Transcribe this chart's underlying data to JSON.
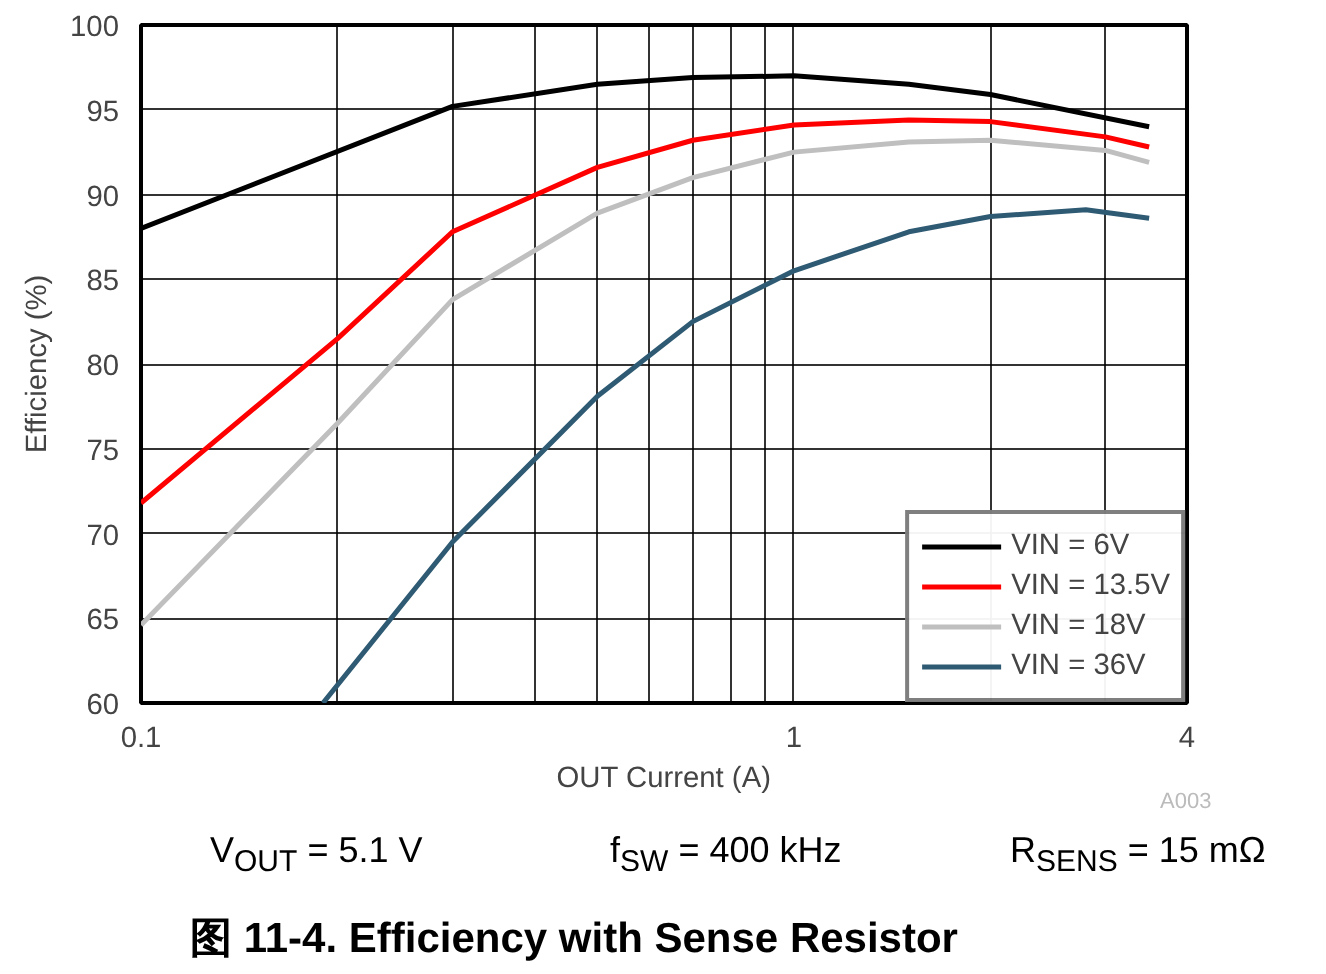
{
  "chart_data": {
    "type": "line",
    "title": "图 11-4. Efficiency with Sense Resistor",
    "xlabel": "OUT Current (A)",
    "ylabel": "Efficiency (%)",
    "log": "x",
    "xlim": [
      0.1,
      4
    ],
    "ylim": [
      60,
      100
    ],
    "xticks": [
      0.1,
      {
        "value": 0.2,
        "label": null
      },
      {
        "value": 0.3,
        "label": null
      },
      {
        "value": 0.4,
        "label": null
      },
      {
        "value": 0.5,
        "label": null
      },
      {
        "value": 0.6,
        "label": null
      },
      {
        "value": 0.7,
        "label": null
      },
      {
        "value": 0.8,
        "label": null
      },
      {
        "value": 0.9,
        "label": null
      },
      1,
      {
        "value": 2,
        "label": null
      },
      {
        "value": 3,
        "label": null
      },
      4
    ],
    "yticks": [
      60,
      65,
      70,
      75,
      80,
      85,
      90,
      95,
      100
    ],
    "grid": true,
    "legend": "bottom right",
    "line_style": "solid",
    "series": [
      {
        "name": "VIN = 6V",
        "color": "#000000",
        "x": [
          0.1,
          0.3,
          0.5,
          0.7,
          1,
          1.5,
          2,
          3.5
        ],
        "values": [
          88,
          95.2,
          96.5,
          96.9,
          97,
          96.5,
          95.9,
          94
        ]
      },
      {
        "name": "VIN = 13.5V",
        "color": "#ff0000",
        "x": [
          0.1,
          0.2,
          0.3,
          0.5,
          0.7,
          1,
          1.5,
          2,
          3,
          3.5
        ],
        "values": [
          71.8,
          81.5,
          87.8,
          91.6,
          93.2,
          94.1,
          94.4,
          94.3,
          93.4,
          92.8
        ]
      },
      {
        "name": "VIN = 18V",
        "color": "#bfbfbf",
        "x": [
          0.1,
          0.2,
          0.3,
          0.5,
          0.7,
          1,
          1.5,
          2,
          3,
          3.5
        ],
        "values": [
          64.6,
          76.5,
          83.8,
          88.9,
          91.0,
          92.5,
          93.1,
          93.2,
          92.6,
          91.9
        ]
      },
      {
        "name": "VIN = 36V",
        "color": "#2e5a73",
        "x": [
          0.19,
          0.3,
          0.5,
          0.7,
          1,
          1.5,
          2,
          2.8,
          3.5
        ],
        "values": [
          60,
          69.5,
          78.1,
          82.5,
          85.5,
          87.8,
          88.7,
          89.1,
          88.6
        ]
      }
    ],
    "annotations": [
      "A003",
      "V$_{OUT}$ = 5.1 V",
      "f$_{SW}$ = 400 kHz",
      "R$_{SENS}$ = 15 mΩ"
    ]
  }
}
